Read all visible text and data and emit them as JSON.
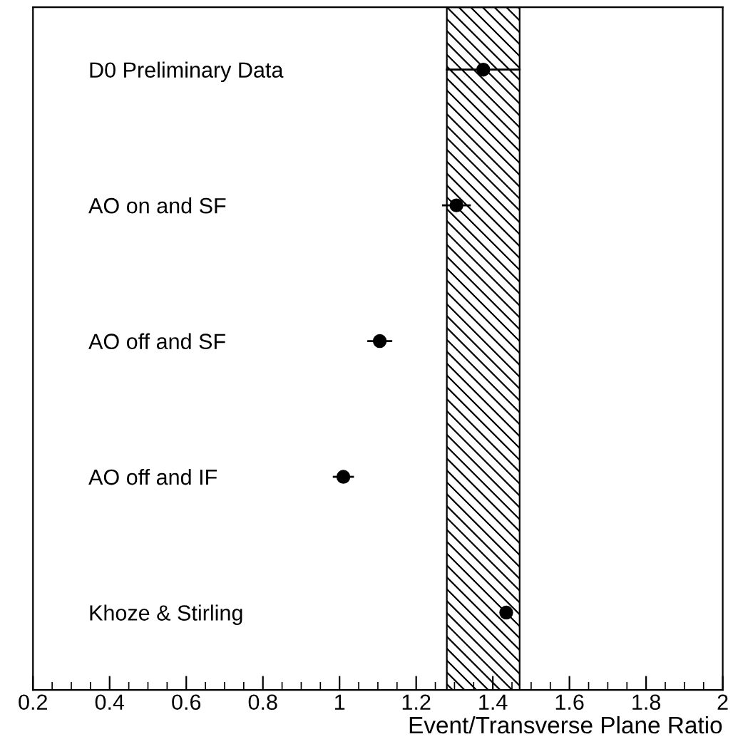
{
  "chart_data": {
    "type": "scatter",
    "orientation": "horizontal",
    "xlabel": "Event/Transverse Plane Ratio",
    "categories": [
      "D0 Preliminary Data",
      "AO on and SF",
      "AO off and SF",
      "AO off and IF",
      "Khoze & Stirling"
    ],
    "series": [
      {
        "color": "#000000",
        "values": [
          1.375,
          1.305,
          1.105,
          1.01,
          1.435
        ],
        "errors": [
          0.095,
          0.035,
          0.03,
          0.025,
          null
        ]
      }
    ],
    "marker": "circle",
    "xlim": [
      0.2,
      2
    ],
    "xticks": [
      0.2,
      0.4,
      0.6,
      0.8,
      1,
      1.2,
      1.4,
      1.6,
      1.8,
      2
    ],
    "bands": [
      {
        "axis": "x",
        "from": 1.28,
        "to": 1.47,
        "color": "#000000"
      }
    ],
    "grid": false,
    "legend": false
  }
}
